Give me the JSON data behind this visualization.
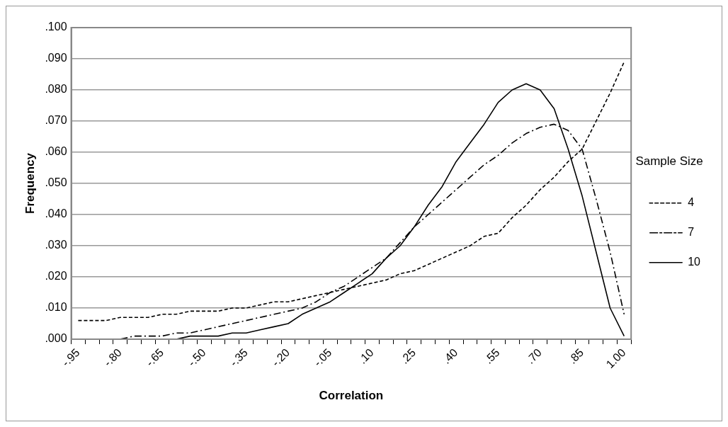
{
  "chart_data": {
    "type": "line",
    "xlabel": "Correlation",
    "ylabel": "Frequency",
    "legend_title": "Sample Size",
    "categories": [
      "-.95",
      null,
      null,
      "-.80",
      null,
      null,
      "-.65",
      null,
      null,
      "-.50",
      null,
      null,
      "-.35",
      null,
      null,
      "-.20",
      null,
      null,
      "-.05",
      null,
      null,
      ".10",
      null,
      null,
      ".25",
      null,
      null,
      ".40",
      null,
      null,
      ".55",
      null,
      null,
      ".70",
      null,
      null,
      ".85",
      null,
      null,
      "1.00"
    ],
    "series": [
      {
        "name": "4",
        "color": "#000000",
        "line_style": "dashed",
        "values": [
          0.006,
          0.006,
          0.006,
          0.007,
          0.007,
          0.007,
          0.008,
          0.008,
          0.009,
          0.009,
          0.009,
          0.01,
          0.01,
          0.011,
          0.012,
          0.012,
          0.013,
          0.014,
          0.015,
          0.016,
          0.017,
          0.018,
          0.019,
          0.021,
          0.022,
          0.024,
          0.026,
          0.028,
          0.03,
          0.033,
          0.034,
          0.039,
          0.043,
          0.048,
          0.052,
          0.057,
          0.061,
          0.07,
          0.079,
          0.089
        ]
      },
      {
        "name": "7",
        "color": "#000000",
        "line_style": "dashdot",
        "values": [
          0,
          0,
          0,
          0,
          0.001,
          0.001,
          0.001,
          0.002,
          0.002,
          0.003,
          0.004,
          0.005,
          0.006,
          0.007,
          0.008,
          0.009,
          0.01,
          0.012,
          0.015,
          0.017,
          0.02,
          0.023,
          0.026,
          0.031,
          0.036,
          0.04,
          0.044,
          0.048,
          0.052,
          0.056,
          0.059,
          0.063,
          0.066,
          0.068,
          0.069,
          0.067,
          0.061,
          0.045,
          0.028,
          0.008
        ]
      },
      {
        "name": "10",
        "color": "#000000",
        "line_style": "solid",
        "values": [
          0,
          0,
          0,
          0,
          0,
          0,
          0,
          0,
          0.001,
          0.001,
          0.001,
          0.002,
          0.002,
          0.003,
          0.004,
          0.005,
          0.008,
          0.01,
          0.012,
          0.015,
          0.018,
          0.021,
          0.026,
          0.03,
          0.036,
          0.043,
          0.049,
          0.057,
          0.063,
          0.069,
          0.076,
          0.08,
          0.082,
          0.08,
          0.074,
          0.061,
          0.046,
          0.028,
          0.01,
          0.001
        ]
      }
    ],
    "ylim": [
      0,
      0.1
    ],
    "yticks": [
      {
        "value": 0,
        "label": ".000"
      },
      {
        "value": 0.01,
        "label": ".010"
      },
      {
        "value": 0.02,
        "label": ".020"
      },
      {
        "value": 0.03,
        "label": ".030"
      },
      {
        "value": 0.04,
        "label": ".040"
      },
      {
        "value": 0.05,
        "label": ".050"
      },
      {
        "value": 0.06,
        "label": ".060"
      },
      {
        "value": 0.07,
        "label": ".070"
      },
      {
        "value": 0.08,
        "label": ".080"
      },
      {
        "value": 0.09,
        "label": ".090"
      },
      {
        "value": 0.1,
        "label": ".100"
      }
    ],
    "grid": "y",
    "legend": "right",
    "marker": "none"
  }
}
